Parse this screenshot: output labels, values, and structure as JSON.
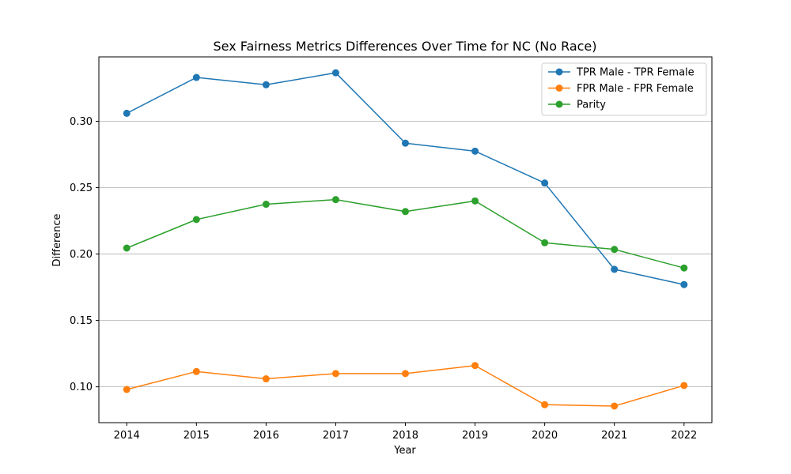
{
  "chart_data": {
    "type": "line",
    "title": "Sex Fairness Metrics Differences Over Time for NC (No Race)",
    "xlabel": "Year",
    "ylabel": "Difference",
    "x": [
      2014,
      2015,
      2016,
      2017,
      2018,
      2019,
      2020,
      2021,
      2022
    ],
    "x_ticks": [
      "2014",
      "2015",
      "2016",
      "2017",
      "2018",
      "2019",
      "2020",
      "2021",
      "2022"
    ],
    "xlim": [
      2013.6,
      2022.4
    ],
    "ylim": [
      0.073,
      0.3485
    ],
    "y_ticks": [
      0.1,
      0.15,
      0.2,
      0.25,
      0.3
    ],
    "y_tick_labels": [
      "0.10",
      "0.15",
      "0.20",
      "0.25",
      "0.30"
    ],
    "grid": "y-axis only",
    "legend_position": "top-right",
    "series": [
      {
        "name": "TPR Male - TPR Female",
        "color": "#1f77b4",
        "values": [
          0.306,
          0.333,
          0.3275,
          0.3365,
          0.2835,
          0.2775,
          0.2535,
          0.1885,
          0.177
        ]
      },
      {
        "name": "FPR Male - FPR Female",
        "color": "#ff7f0e",
        "values": [
          0.098,
          0.1115,
          0.106,
          0.11,
          0.11,
          0.116,
          0.0865,
          0.0855,
          0.101
        ]
      },
      {
        "name": "Parity",
        "color": "#2ca02c",
        "values": [
          0.2045,
          0.226,
          0.2375,
          0.241,
          0.232,
          0.24,
          0.2085,
          0.2035,
          0.1895
        ]
      }
    ]
  }
}
